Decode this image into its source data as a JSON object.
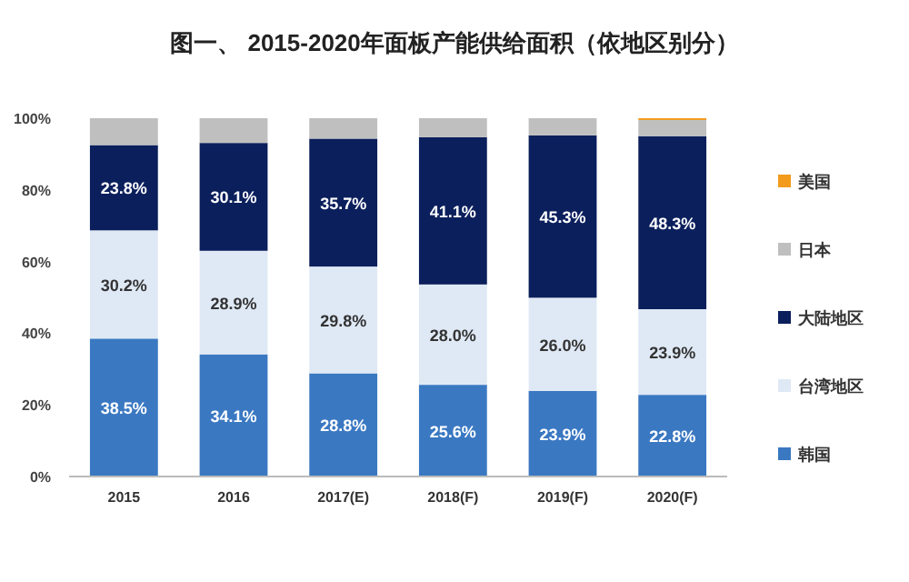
{
  "chart_data": {
    "type": "bar",
    "stacked": true,
    "title": "图一、 2015-2020年面板产能供给面积（依地区别分）",
    "categories": [
      "2015",
      "2016",
      "2017(E)",
      "2018(F)",
      "2019(F)",
      "2020(F)"
    ],
    "series": [
      {
        "name": "韩国",
        "color": "#3a78c2",
        "values": [
          38.5,
          34.1,
          28.8,
          25.6,
          23.9,
          22.8
        ],
        "value_labels": [
          "38.5%",
          "34.1%",
          "28.8%",
          "25.6%",
          "23.9%",
          "22.8%"
        ]
      },
      {
        "name": "台湾地区",
        "color": "#dfe9f5",
        "values": [
          30.2,
          28.9,
          29.8,
          28.0,
          26.0,
          23.9
        ],
        "value_labels": [
          "30.2%",
          "28.9%",
          "29.8%",
          "28.0%",
          "26.0%",
          "23.9%"
        ]
      },
      {
        "name": "大陆地区",
        "color": "#0b1f5c",
        "values": [
          23.8,
          30.1,
          35.7,
          41.1,
          45.3,
          48.3
        ],
        "value_labels": [
          "23.8%",
          "30.1%",
          "35.7%",
          "41.1%",
          "45.3%",
          "48.3%"
        ]
      },
      {
        "name": "日本",
        "color": "#bfbfbf",
        "values": [
          7.5,
          6.9,
          5.7,
          5.3,
          4.8,
          4.5
        ]
      },
      {
        "name": "美国",
        "color": "#f29b1c",
        "values": [
          0,
          0,
          0,
          0,
          0,
          0.5
        ]
      }
    ],
    "ylim": [
      0,
      100
    ],
    "yticks": [
      {
        "value": 0,
        "label": "0%"
      },
      {
        "value": 20,
        "label": "20%"
      },
      {
        "value": 40,
        "label": "40%"
      },
      {
        "value": 60,
        "label": "60%"
      },
      {
        "value": 80,
        "label": "80%"
      },
      {
        "value": 100,
        "label": "100%"
      }
    ],
    "legend": "right"
  }
}
